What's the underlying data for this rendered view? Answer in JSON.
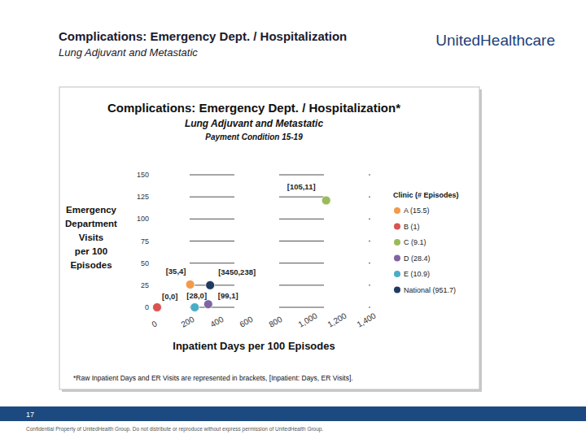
{
  "slide": {
    "title": "Complications: Emergency Dept. / Hospitalization",
    "subtitle": "Lung Adjuvant and Metastatic",
    "logo": "UnitedHealthcare",
    "page_number": 17,
    "footer": "Confidential Property of UnitedHealth Group. Do not distribute or reproduce without express permission of UnitedHealth Group."
  },
  "chart_data": {
    "type": "scatter",
    "title": "Complications: Emergency Dept. / Hospitalization*",
    "subtitle": "Lung Adjuvant and Metastatic",
    "payment_condition": "Payment Condition 15-19",
    "x_label": "Inpatient Days per 100 Episodes",
    "y_label": [
      "Emergency",
      "Department",
      "Visits",
      "per 100",
      "Episodes"
    ],
    "legend_title": "Clinic (# Episodes)",
    "footnote": "*Raw Inpatient Days and ER Visits are represented in brackets, [Inpatient: Days, ER Visits].",
    "xlim": [
      0,
      1400
    ],
    "ylim": [
      0,
      150
    ],
    "xticks": [
      0,
      200,
      400,
      600,
      800,
      {
        "value": 1000,
        "label": "1,000"
      },
      {
        "value": 1200,
        "label": "1,200"
      },
      {
        "value": 1400,
        "label": "1,400"
      }
    ],
    "yticks": [
      0,
      25,
      50,
      75,
      100,
      125,
      150
    ],
    "grid": true,
    "legend": "right",
    "marker": "circle",
    "series": [
      {
        "name": "A (15.5)",
        "color": "#f39a4a",
        "x": [
          226
        ],
        "values": [
          25.8
        ],
        "annotation": "[35,4]"
      },
      {
        "name": "B (1)",
        "color": "#d9534f",
        "x": [
          0
        ],
        "values": [
          0
        ],
        "annotation": "[0,0]"
      },
      {
        "name": "C (9.1)",
        "color": "#9bbb59",
        "x": [
          1154
        ],
        "values": [
          121
        ],
        "annotation": "[105,11]"
      },
      {
        "name": "D (28.4)",
        "color": "#8064a2",
        "x": [
          349
        ],
        "values": [
          3.5
        ],
        "annotation": "[99,1]"
      },
      {
        "name": "E (10.9)",
        "color": "#4bacc6",
        "x": [
          257
        ],
        "values": [
          0
        ],
        "annotation": "[28,0]"
      },
      {
        "name": "National (951.7)",
        "color": "#1f3a5f",
        "x": [
          362
        ],
        "values": [
          25
        ],
        "annotation": "[3450,238]"
      }
    ]
  }
}
